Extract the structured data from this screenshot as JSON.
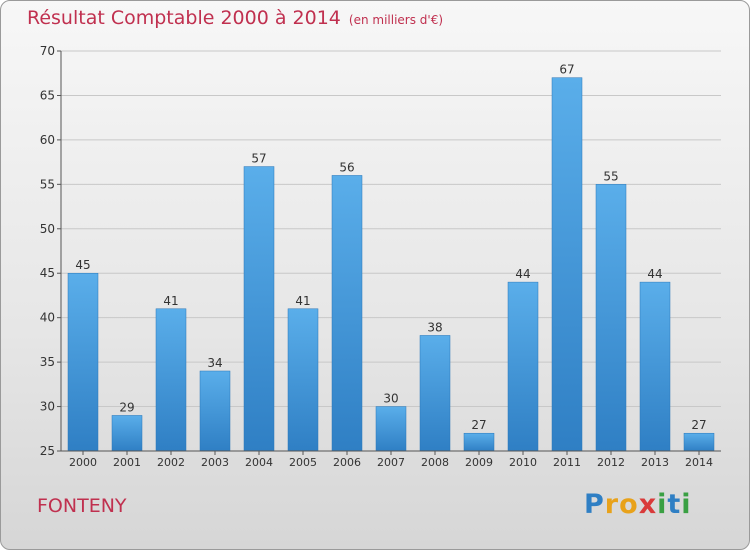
{
  "chart_data": {
    "type": "bar",
    "title": "Résultat Comptable 2000 à 2014",
    "subtitle": "(en milliers d'€)",
    "categories": [
      "2000",
      "2001",
      "2002",
      "2003",
      "2004",
      "2005",
      "2006",
      "2007",
      "2008",
      "2009",
      "2010",
      "2011",
      "2012",
      "2013",
      "2014"
    ],
    "values": [
      45,
      29,
      41,
      34,
      57,
      41,
      56,
      30,
      38,
      27,
      44,
      67,
      55,
      44,
      27
    ],
    "ylim": [
      25,
      70
    ],
    "yticks": [
      25,
      30,
      35,
      40,
      45,
      50,
      55,
      60,
      65,
      70
    ],
    "xlabel": "",
    "ylabel": "",
    "grid": true,
    "bar_color_top": "#5aaeea",
    "bar_color_bottom": "#2f7fc4"
  },
  "location": "FONTENY",
  "logo": {
    "letters": [
      "P",
      "r",
      "o",
      "x",
      "i",
      "t",
      "i"
    ],
    "colors": [
      "#2f7fc4",
      "#e8a21a",
      "#e8a21a",
      "#d93a3a",
      "#3aa043",
      "#2f7fc4",
      "#3aa043"
    ]
  }
}
